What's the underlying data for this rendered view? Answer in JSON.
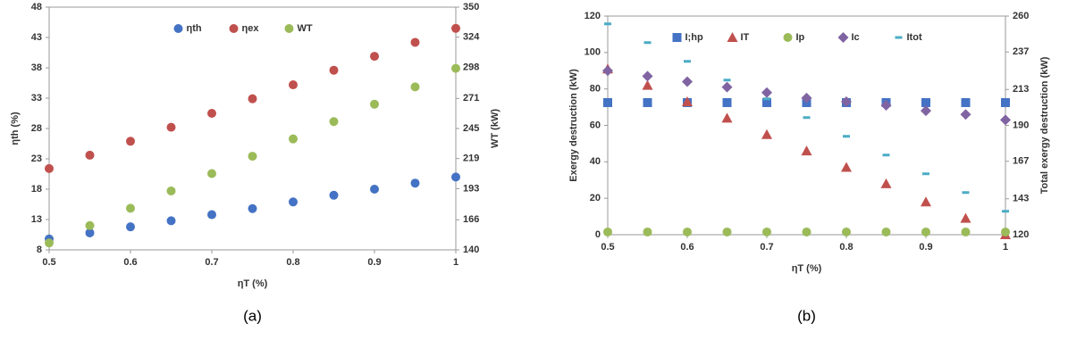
{
  "chart_data": [
    {
      "type": "scatter",
      "caption": "(a)",
      "x_label": "ηT (%)",
      "y_label": "ηth (%)",
      "y2_label": "WT (kW)",
      "x": [
        0.5,
        0.55,
        0.6,
        0.65,
        0.7,
        0.75,
        0.8,
        0.85,
        0.9,
        0.95,
        1
      ],
      "xlim": [
        0.5,
        1
      ],
      "xticks": [
        0.5,
        0.6,
        0.7,
        0.8,
        0.9,
        1
      ],
      "ylim": [
        8,
        48
      ],
      "yticks": [
        8,
        13,
        18,
        23,
        28,
        33,
        38,
        43,
        48
      ],
      "y2lim": [
        140,
        350
      ],
      "y2ticks": [
        140,
        166,
        193,
        219,
        245,
        271,
        298,
        324,
        350
      ],
      "grid": false,
      "legend": "top",
      "series": [
        {
          "name": "ηth",
          "color": "#4472c4",
          "marker": "circle",
          "values": [
            9.8,
            10.8,
            11.8,
            12.8,
            13.8,
            14.8,
            15.9,
            17,
            18,
            19,
            20
          ]
        },
        {
          "name": "ηex",
          "color": "#c0504d",
          "marker": "circle",
          "values": [
            21.4,
            23.6,
            25.9,
            28.2,
            30.5,
            32.9,
            35.2,
            37.6,
            39.9,
            42.2,
            44.5
          ]
        },
        {
          "name": "WT",
          "color": "#9bbb59",
          "marker": "circle",
          "axis": "y2",
          "values": [
            146,
            161,
            176,
            191,
            206,
            221,
            236,
            251,
            266,
            281,
            297
          ]
        }
      ]
    },
    {
      "type": "scatter",
      "caption": "(b)",
      "x_label": "ηT (%)",
      "y_label": "Exergy destruction (kW)",
      "y2_label": "Total exergy destruction (kW)",
      "x": [
        0.5,
        0.55,
        0.6,
        0.65,
        0.7,
        0.75,
        0.8,
        0.85,
        0.9,
        0.95,
        1
      ],
      "xlim": [
        0.5,
        1
      ],
      "xticks": [
        0.5,
        0.6,
        0.7,
        0.8,
        0.9,
        1
      ],
      "ylim": [
        0,
        120
      ],
      "yticks": [
        0,
        20,
        40,
        60,
        80,
        100,
        120
      ],
      "y2lim": [
        120,
        260
      ],
      "y2ticks": [
        120,
        143,
        167,
        190,
        213,
        237,
        260
      ],
      "grid": false,
      "legend": "top",
      "series": [
        {
          "name": "I;hp",
          "color": "#4472c4",
          "marker": "square",
          "values": [
            72.5,
            72.5,
            72.5,
            72.5,
            72.5,
            72.5,
            72.5,
            72.5,
            72.5,
            72.5,
            72.5
          ]
        },
        {
          "name": "IT",
          "color": "#c0504d",
          "marker": "triangle",
          "values": [
            91,
            82,
            73,
            64,
            55,
            46,
            37,
            28,
            18,
            9,
            0
          ]
        },
        {
          "name": "Ip",
          "color": "#9bbb59",
          "marker": "circle",
          "values": [
            1.5,
            1.5,
            1.5,
            1.5,
            1.5,
            1.5,
            1.5,
            1.5,
            1.5,
            1.5,
            1.5
          ]
        },
        {
          "name": "Ic",
          "color": "#8064a2",
          "marker": "diamond",
          "values": [
            90,
            87,
            84,
            81,
            78,
            75,
            73,
            71,
            68,
            66,
            63
          ]
        },
        {
          "name": "Itot",
          "color": "#4bacc6",
          "marker": "dash",
          "axis": "y2",
          "values": [
            255,
            243,
            231,
            219,
            207,
            195,
            183,
            171,
            159,
            147,
            135
          ]
        }
      ]
    }
  ]
}
